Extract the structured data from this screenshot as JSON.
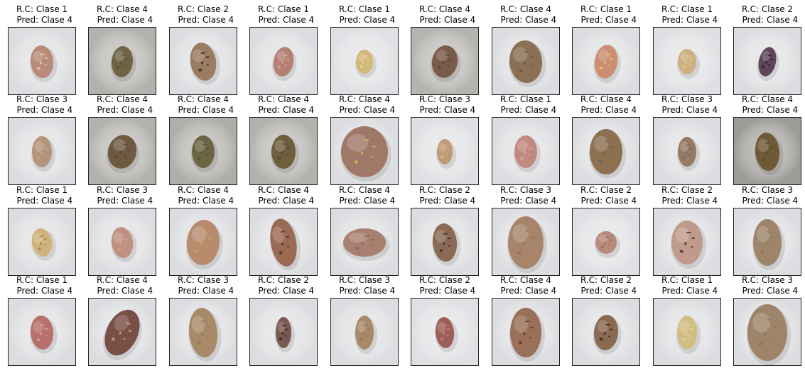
{
  "figure": {
    "panels": [
      {
        "rc": "R.C: Clase 1",
        "pred": "Pred: Clase 4",
        "bg": "#dcdde0",
        "fill": "#b88a7a",
        "spots": "#e8d49a",
        "rx": 16,
        "ry": 23,
        "tilt": -5
      },
      {
        "rc": "R.C: Clase 4",
        "pred": "Pred: Clase 4",
        "bg": "#b4b2ae",
        "fill": "#6f6545",
        "spots": "#5a5030",
        "rx": 15,
        "ry": 22,
        "tilt": 5
      },
      {
        "rc": "R.C: Clase 2",
        "pred": "Pred: Clase 4",
        "bg": "#dcdde0",
        "fill": "#9a7c60",
        "spots": "#2e2030",
        "rx": 18,
        "ry": 27,
        "tilt": -10
      },
      {
        "rc": "R.C: Clase 1",
        "pred": "Pred: Clase 4",
        "bg": "#dcdde0",
        "fill": "#b58074",
        "spots": "#d6a89a",
        "rx": 14,
        "ry": 21,
        "tilt": 10
      },
      {
        "rc": "R.C: Clase 1",
        "pred": "Pred: Clase 4",
        "bg": "#dfe0e3",
        "fill": "#d2b878",
        "spots": "#e4d6a0",
        "rx": 12,
        "ry": 17,
        "tilt": 0
      },
      {
        "rc": "R.C: Clase 4",
        "pred": "Pred: Clase 4",
        "bg": "#b6b4b0",
        "fill": "#7a5a48",
        "spots": "#5e4436",
        "rx": 18,
        "ry": 23,
        "tilt": 10
      },
      {
        "rc": "R.C: Clase 4",
        "pred": "Pred: Clase 4",
        "bg": "#dcdde0",
        "fill": "#8a7055",
        "spots": "#6b5440",
        "rx": 23,
        "ry": 30,
        "tilt": -5
      },
      {
        "rc": "R.C: Clase 1",
        "pred": "Pred: Clase 4",
        "bg": "#dcdde0",
        "fill": "#c98f70",
        "spots": "#e2c280",
        "rx": 16,
        "ry": 24,
        "tilt": 8
      },
      {
        "rc": "R.C: Clase 1",
        "pred": "Pred: Clase 4",
        "bg": "#dfe0e3",
        "fill": "#cdb080",
        "spots": "#e0cc98",
        "rx": 13,
        "ry": 18,
        "tilt": 0
      },
      {
        "rc": "R.C: Clase 2",
        "pred": "Pred: Clase 4",
        "bg": "#dcdde0",
        "fill": "#5e4658",
        "spots": "#2a1e2a",
        "rx": 12,
        "ry": 21,
        "tilt": 12
      },
      {
        "rc": "R.C: Clase 3",
        "pred": "Pred: Clase 4",
        "bg": "#dcdde0",
        "fill": "#b5957a",
        "spots": "#c9aa8e",
        "rx": 14,
        "ry": 22,
        "tilt": 0
      },
      {
        "rc": "R.C: Clase 4",
        "pred": "Pred: Clase 4",
        "bg": "#b4b2ae",
        "fill": "#6e5a40",
        "spots": "#56462f",
        "rx": 20,
        "ry": 24,
        "tilt": 15
      },
      {
        "rc": "R.C: Clase 4",
        "pred": "Pred: Clase 4",
        "bg": "#b0aeaa",
        "fill": "#6c6544",
        "spots": "#55503a",
        "rx": 16,
        "ry": 23,
        "tilt": 0
      },
      {
        "rc": "R.C: Clase 4",
        "pred": "Pred: Clase 4",
        "bg": "#b4b2ae",
        "fill": "#6e5e3e",
        "spots": "#55492f",
        "rx": 17,
        "ry": 24,
        "tilt": 0
      },
      {
        "rc": "R.C: Clase 4",
        "pred": "Pred: Clase 4",
        "bg": "#dcdde0",
        "fill": "#a07868",
        "spots": "#d8c84a",
        "rx": 33,
        "ry": 36,
        "tilt": 0
      },
      {
        "rc": "R.C: Clase 3",
        "pred": "Pred: Clase 4",
        "bg": "#dfe0e3",
        "fill": "#bf9a75",
        "spots": "#d2b08a",
        "rx": 11,
        "ry": 18,
        "tilt": 0
      },
      {
        "rc": "R.C: Clase 1",
        "pred": "Pred: Clase 4",
        "bg": "#dcdde0",
        "fill": "#c08a80",
        "spots": "#d8a89a",
        "rx": 16,
        "ry": 23,
        "tilt": 0
      },
      {
        "rc": "R.C: Clase 4",
        "pred": "Pred: Clase 4",
        "bg": "#dcdde0",
        "fill": "#8c7050",
        "spots": "#5a6a55",
        "rx": 23,
        "ry": 32,
        "tilt": 0
      },
      {
        "rc": "R.C: Clase 3",
        "pred": "Pred: Clase 4",
        "bg": "#dcdde0",
        "fill": "#957a65",
        "spots": "#806550",
        "rx": 13,
        "ry": 21,
        "tilt": 0
      },
      {
        "rc": "R.C: Clase 4",
        "pred": "Pred: Clase 4",
        "bg": "#9e9c98",
        "fill": "#6e5a36",
        "spots": "#54452a",
        "rx": 17,
        "ry": 27,
        "tilt": -5
      },
      {
        "rc": "R.C: Clase 1",
        "pred": "Pred: Clase 4",
        "bg": "#dcdde0",
        "fill": "#d0b47e",
        "spots": "#a08050",
        "rx": 14,
        "ry": 20,
        "tilt": -10
      },
      {
        "rc": "R.C: Clase 3",
        "pred": "Pred: Clase 4",
        "bg": "#dcdde0",
        "fill": "#c09080",
        "spots": "#d0a898",
        "rx": 15,
        "ry": 22,
        "tilt": -8
      },
      {
        "rc": "R.C: Clase 4",
        "pred": "Pred: Clase 4",
        "bg": "#dcdde0",
        "fill": "#b88b6e",
        "spots": "#c8b050",
        "rx": 23,
        "ry": 32,
        "tilt": 5
      },
      {
        "rc": "R.C: Clase 4",
        "pred": "Pred: Clase 4",
        "bg": "#dcdde0",
        "fill": "#9a6a52",
        "spots": "#4a3028",
        "rx": 18,
        "ry": 34,
        "tilt": -10
      },
      {
        "rc": "R.C: Clase 4",
        "pred": "Pred: Clase 4",
        "bg": "#dcdde0",
        "fill": "#a88070",
        "spots": "#8a6050",
        "rx": 30,
        "ry": 20,
        "tilt": 0
      },
      {
        "rc": "R.C: Clase 2",
        "pred": "Pred: Clase 4",
        "bg": "#dcdde0",
        "fill": "#8a6a55",
        "spots": "#3a2e30",
        "rx": 17,
        "ry": 27,
        "tilt": -5
      },
      {
        "rc": "R.C: Clase 3",
        "pred": "Pred: Clase 4",
        "bg": "#dcdde0",
        "fill": "#a8846a",
        "spots": "#8d6e58",
        "rx": 25,
        "ry": 37,
        "tilt": 0
      },
      {
        "rc": "R.C: Clase 2",
        "pred": "Pred: Clase 4",
        "bg": "#dfe0e3",
        "fill": "#b88a7a",
        "spots": "#9a7060",
        "rx": 15,
        "ry": 16,
        "tilt": 0
      },
      {
        "rc": "R.C: Clase 2",
        "pred": "Pred: Clase 4",
        "bg": "#dcdde0",
        "fill": "#c09a8a",
        "spots": "#3a2a20",
        "rx": 22,
        "ry": 31,
        "tilt": 0
      },
      {
        "rc": "R.C: Clase 3",
        "pred": "Pred: Clase 4",
        "bg": "#dcdde0",
        "fill": "#9e8468",
        "spots": "#8a7258",
        "rx": 20,
        "ry": 33,
        "tilt": 0
      },
      {
        "rc": "R.C: Clase 1",
        "pred": "Pred: Clase 4",
        "bg": "#dcdde0",
        "fill": "#b8706a",
        "spots": "#d8a0a0",
        "rx": 16,
        "ry": 24,
        "tilt": -5
      },
      {
        "rc": "R.C: Clase 4",
        "pred": "Pred: Clase 4",
        "bg": "#dcdde0",
        "fill": "#7a4f46",
        "spots": "#c6c070",
        "rx": 22,
        "ry": 34,
        "tilt": 25
      },
      {
        "rc": "R.C: Clase 3",
        "pred": "Pred: Clase 4",
        "bg": "#dcdde0",
        "fill": "#a88a68",
        "spots": "#94775a",
        "rx": 20,
        "ry": 35,
        "tilt": -5
      },
      {
        "rc": "R.C: Clase 2",
        "pred": "Pred: Clase 4",
        "bg": "#dcdde0",
        "fill": "#7a5a50",
        "spots": "#3a2a28",
        "rx": 11,
        "ry": 22,
        "tilt": 0
      },
      {
        "rc": "R.C: Clase 3",
        "pred": "Pred: Clase 4",
        "bg": "#dcdde0",
        "fill": "#a8896a",
        "spots": "#927458",
        "rx": 13,
        "ry": 24,
        "tilt": 0
      },
      {
        "rc": "R.C: Clase 2",
        "pred": "Pred: Clase 4",
        "bg": "#dfe0e3",
        "fill": "#9e5e58",
        "spots": "#d08080",
        "rx": 13,
        "ry": 22,
        "tilt": -5
      },
      {
        "rc": "R.C: Clase 4",
        "pred": "Pred: Clase 4",
        "bg": "#dcdde0",
        "fill": "#9a7058",
        "spots": "#5a3a30",
        "rx": 22,
        "ry": 35,
        "tilt": 0
      },
      {
        "rc": "R.C: Clase 2",
        "pred": "Pred: Clase 4",
        "bg": "#dcdde0",
        "fill": "#8a6a50",
        "spots": "#2e2620",
        "rx": 17,
        "ry": 25,
        "tilt": 5
      },
      {
        "rc": "R.C: Clase 1",
        "pred": "Pred: Clase 4",
        "bg": "#dcdde0",
        "fill": "#d2be82",
        "spots": "#e6d6a0",
        "rx": 14,
        "ry": 24,
        "tilt": 0
      },
      {
        "rc": "R.C: Clase 3",
        "pred": "Pred: Clase 4",
        "bg": "#dcdde0",
        "fill": "#9e8468",
        "spots": "#86705a",
        "rx": 28,
        "ry": 40,
        "tilt": 0
      }
    ]
  }
}
